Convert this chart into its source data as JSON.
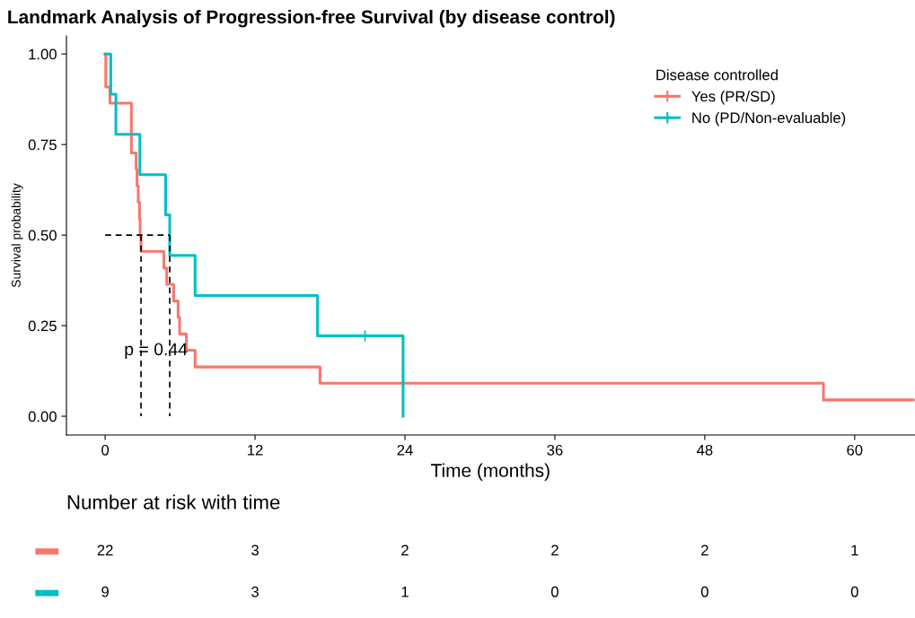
{
  "chart_data": [
    {
      "type": "step",
      "title": "Landmark Analysis of Progression-free Survival (by disease control)",
      "xlabel": "Time (months)",
      "ylabel": "Survival probability",
      "legend_title": "Disease controlled",
      "legend": "top right",
      "grid": false,
      "xlim": [
        -3.1,
        64.8
      ],
      "xticks": [
        0,
        12,
        24,
        36,
        48,
        60
      ],
      "ylim": [
        -0.052,
        1.05
      ],
      "yticks": [
        {
          "value": 0,
          "label": "0.00"
        },
        {
          "value": 0.25,
          "label": "0.25"
        },
        {
          "value": 0.5,
          "label": "0.50"
        },
        {
          "value": 0.75,
          "label": "0.75"
        },
        {
          "value": 1,
          "label": "1.00"
        }
      ],
      "annotations": [
        "p = 0.44"
      ],
      "series": [
        {
          "name": "Yes (PR/SD)",
          "color": "#f8766d",
          "x": [
            0,
            0.05,
            0.38,
            2.1,
            2.48,
            2.55,
            2.65,
            2.75,
            2.8,
            2.87,
            4.7,
            4.93,
            5.48,
            5.84,
            5.96,
            6.5,
            7.2,
            17.2,
            57.5,
            64.8
          ],
          "values": [
            1,
            0.909,
            0.864,
            0.727,
            0.682,
            0.636,
            0.591,
            0.545,
            0.5,
            0.455,
            0.409,
            0.364,
            0.318,
            0.273,
            0.227,
            0.182,
            0.136,
            0.091,
            0.045,
            0.045
          ]
        },
        {
          "name": "No (PD/Non-evaluable)",
          "color": "#00bfc4",
          "x": [
            0,
            0.45,
            0.86,
            2.78,
            4.84,
            5.17,
            7.2,
            17.0,
            23.85
          ],
          "values": [
            1,
            0.889,
            0.778,
            0.667,
            0.556,
            0.444,
            0.333,
            0.222,
            0
          ]
        },
        {
          "type": "scatter",
          "color": "#00bfc4",
          "marker": "cross",
          "x": [
            20.8
          ],
          "values": [
            0.222
          ]
        },
        {
          "type": "line",
          "color": "#000000",
          "line_style": "dashed",
          "x": [
            0,
            5.17
          ],
          "values": [
            0.5,
            0.5
          ]
        },
        {
          "type": "line",
          "color": "#000000",
          "line_style": "dashed",
          "x": [
            2.87,
            2.87
          ],
          "values": [
            0.5,
            0
          ]
        },
        {
          "type": "line",
          "color": "#000000",
          "line_style": "dashed",
          "x": [
            5.17,
            5.17
          ],
          "values": [
            0.5,
            0
          ]
        }
      ]
    },
    {
      "type": "heatmap",
      "title": "Number at risk with time",
      "data_labels": true,
      "categories": [
        null,
        null,
        null,
        null,
        null,
        null
      ],
      "y_categories": [
        null,
        null
      ],
      "colors": [
        "#f8766d",
        "#00bfc4"
      ],
      "cells": [
        [
          22,
          3,
          2,
          2,
          2,
          1
        ],
        [
          9,
          3,
          1,
          0,
          0,
          0
        ]
      ]
    }
  ]
}
